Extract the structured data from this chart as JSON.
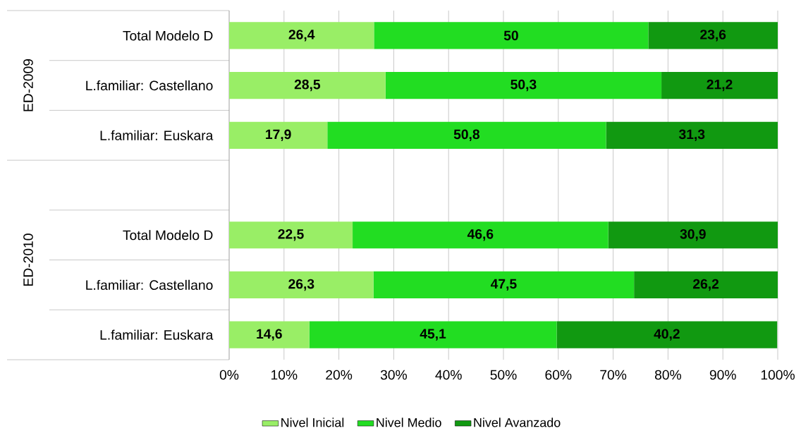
{
  "chart_data": {
    "type": "bar",
    "orientation": "horizontal",
    "stacked": true,
    "categories": [
      "Total Modelo D",
      "L.familiar: Castellano",
      "L.familiar: Euskara",
      null,
      "Total Modelo D",
      "L.familiar: Castellano",
      "L.familiar: Euskara"
    ],
    "series": [
      {
        "name": "Nivel Inicial",
        "color": "#99ee66",
        "values": [
          26.4,
          28.5,
          17.9,
          null,
          22.5,
          26.3,
          14.6
        ],
        "value_labels": [
          "26,4",
          "28,5",
          "17,9",
          null,
          "22,5",
          "26,3",
          "14,6"
        ]
      },
      {
        "name": "Nivel Medio",
        "color": "#22dd22",
        "values": [
          50,
          50.3,
          50.8,
          null,
          46.6,
          47.5,
          45.1
        ],
        "value_labels": [
          "50",
          "50,3",
          "50,8",
          null,
          "46,6",
          "47,5",
          "45,1"
        ]
      },
      {
        "name": "Nivel Avanzado",
        "color": "#119911",
        "values": [
          23.6,
          21.2,
          31.3,
          null,
          30.9,
          26.2,
          40.2
        ],
        "value_labels": [
          "23,6",
          "21,2",
          "31,3",
          null,
          "30,9",
          "26,2",
          "40,2"
        ]
      }
    ],
    "xlim": [
      0,
      100
    ],
    "xticks": [
      {
        "value": 0,
        "label": "0%"
      },
      {
        "value": 10,
        "label": "10%"
      },
      {
        "value": 20,
        "label": "20%"
      },
      {
        "value": 30,
        "label": "30%"
      },
      {
        "value": 40,
        "label": "40%"
      },
      {
        "value": 50,
        "label": "50%"
      },
      {
        "value": 60,
        "label": "60%"
      },
      {
        "value": 70,
        "label": "70%"
      },
      {
        "value": 80,
        "label": "80%"
      },
      {
        "value": 90,
        "label": "90%"
      },
      {
        "value": 100,
        "label": "100%"
      }
    ],
    "grid": "x",
    "legend": "bottom",
    "annotations": [
      "ED-2009",
      "ED-2010"
    ]
  }
}
